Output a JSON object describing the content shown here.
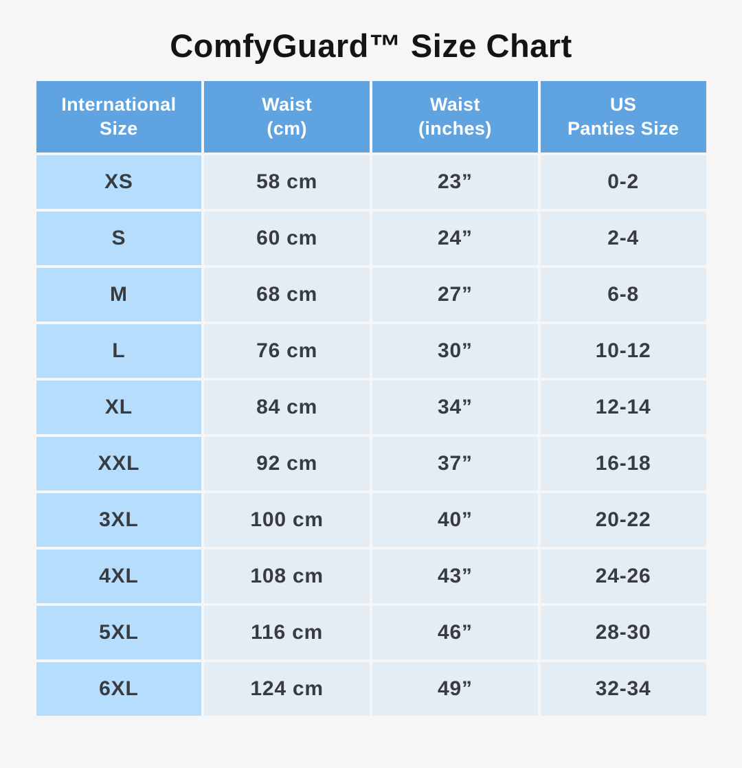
{
  "title": "ComfyGuard™ Size Chart",
  "colors": {
    "background": "#f6f6f7",
    "header_bg": "#5fa4e0",
    "header_text": "#ffffff",
    "size_col_bg": "#b6ddfb",
    "cell_bg": "#e4ecf4",
    "cell_text": "#383c41",
    "title_text": "#141414"
  },
  "table": {
    "headers": [
      {
        "line1": "International",
        "line2": "Size"
      },
      {
        "line1": "Waist",
        "line2": "(cm)"
      },
      {
        "line1": "Waist",
        "line2": "(inches)"
      },
      {
        "line1": "US",
        "line2": "Panties Size"
      }
    ],
    "rows": [
      {
        "size": "XS",
        "waist_cm": "58 cm",
        "waist_in": "23”",
        "us_size": "0-2"
      },
      {
        "size": "S",
        "waist_cm": "60 cm",
        "waist_in": "24”",
        "us_size": "2-4"
      },
      {
        "size": "M",
        "waist_cm": "68 cm",
        "waist_in": "27”",
        "us_size": "6-8"
      },
      {
        "size": "L",
        "waist_cm": "76 cm",
        "waist_in": "30”",
        "us_size": "10-12"
      },
      {
        "size": "XL",
        "waist_cm": "84 cm",
        "waist_in": "34”",
        "us_size": "12-14"
      },
      {
        "size": "XXL",
        "waist_cm": "92 cm",
        "waist_in": "37”",
        "us_size": "16-18"
      },
      {
        "size": "3XL",
        "waist_cm": "100 cm",
        "waist_in": "40”",
        "us_size": "20-22"
      },
      {
        "size": "4XL",
        "waist_cm": "108 cm",
        "waist_in": "43”",
        "us_size": "24-26"
      },
      {
        "size": "5XL",
        "waist_cm": "116 cm",
        "waist_in": "46”",
        "us_size": "28-30"
      },
      {
        "size": "6XL",
        "waist_cm": "124 cm",
        "waist_in": "49”",
        "us_size": "32-34"
      }
    ]
  },
  "chart_data": {
    "type": "table",
    "title": "ComfyGuard™ Size Chart",
    "columns": [
      "International Size",
      "Waist (cm)",
      "Waist (inches)",
      "US Panties Size"
    ],
    "rows": [
      [
        "XS",
        "58 cm",
        "23”",
        "0-2"
      ],
      [
        "S",
        "60 cm",
        "24”",
        "2-4"
      ],
      [
        "M",
        "68 cm",
        "27”",
        "6-8"
      ],
      [
        "L",
        "76 cm",
        "30”",
        "10-12"
      ],
      [
        "XL",
        "84 cm",
        "34”",
        "12-14"
      ],
      [
        "XXL",
        "92 cm",
        "37”",
        "16-18"
      ],
      [
        "3XL",
        "100 cm",
        "40”",
        "20-22"
      ],
      [
        "4XL",
        "108 cm",
        "43”",
        "24-26"
      ],
      [
        "5XL",
        "116 cm",
        "46”",
        "28-30"
      ],
      [
        "6XL",
        "124 cm",
        "49”",
        "32-34"
      ]
    ]
  }
}
